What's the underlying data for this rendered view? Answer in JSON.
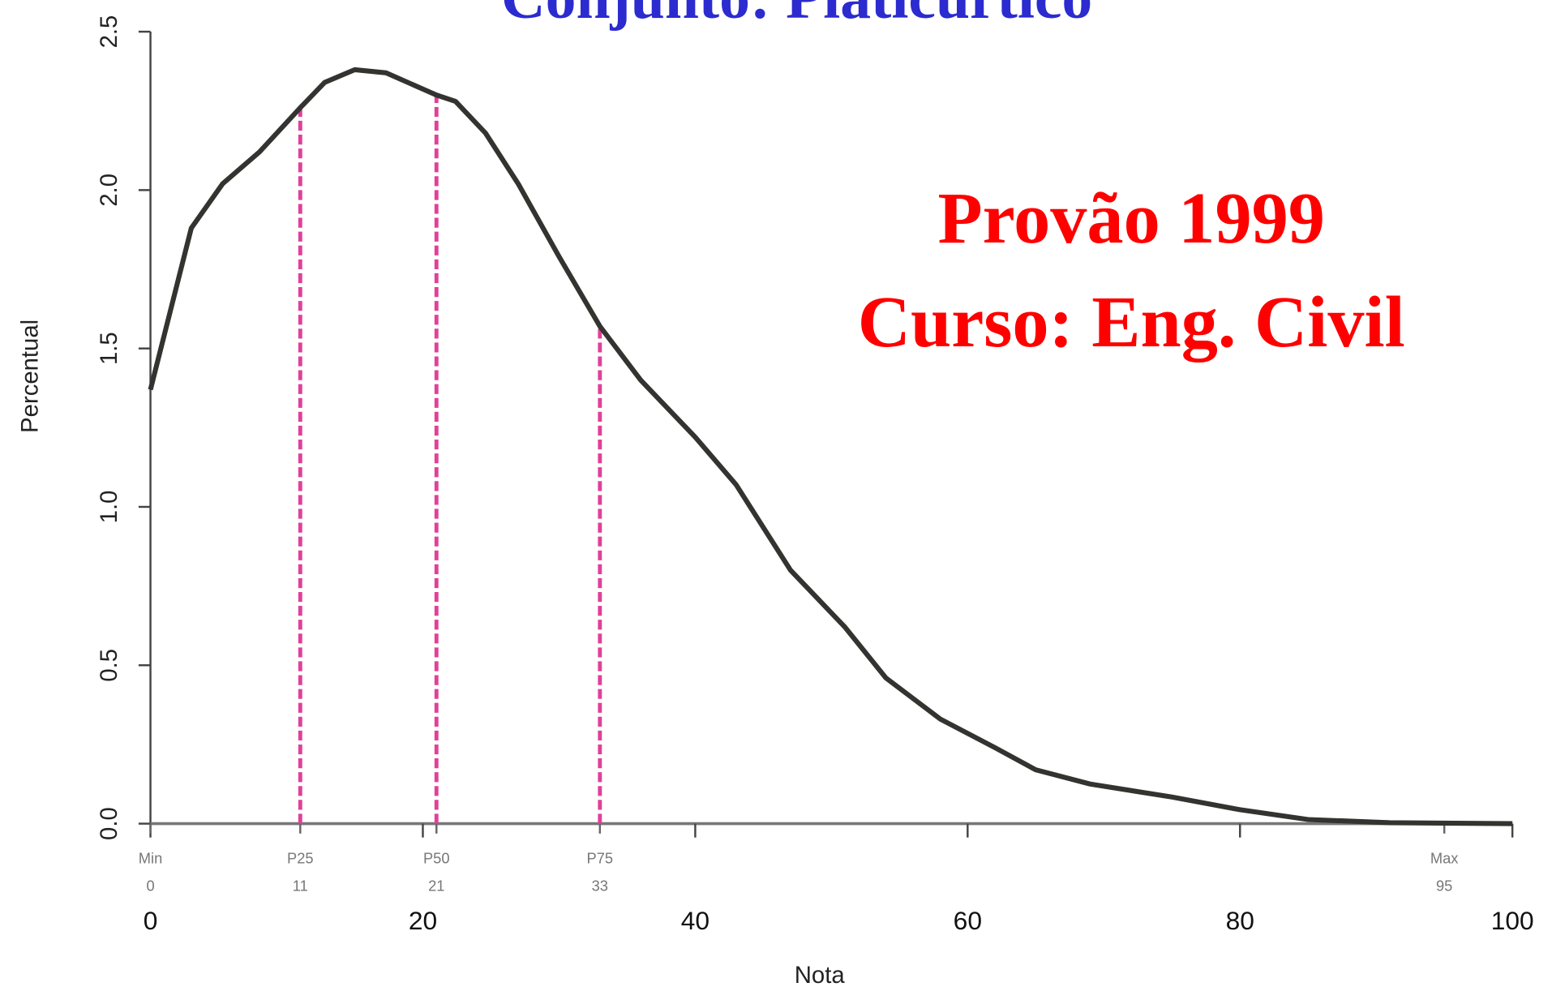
{
  "chart_data": {
    "type": "line",
    "title": "Conjunto: Platicúrtico",
    "annotations": [
      "Provão 1999",
      "Curso: Eng. Civil"
    ],
    "x_label": "Nota",
    "y_label": "Percentual",
    "x": [
      0,
      3,
      5.3,
      8,
      11,
      12.8,
      15,
      17.3,
      21,
      22.4,
      24.6,
      27,
      30,
      33,
      36,
      40,
      43,
      47,
      51,
      54,
      58,
      62,
      65,
      69,
      75,
      80,
      85,
      91,
      100
    ],
    "series": [
      {
        "color": "#333330",
        "values": [
          1.37,
          1.88,
          2.02,
          2.12,
          2.26,
          2.34,
          2.38,
          2.37,
          2.3,
          2.28,
          2.18,
          2.02,
          1.79,
          1.57,
          1.4,
          1.22,
          1.07,
          0.8,
          0.62,
          0.46,
          0.33,
          0.24,
          0.17,
          0.125,
          0.084,
          0.044,
          0.013,
          0.003,
          0
        ]
      }
    ],
    "xlim": [
      0,
      100
    ],
    "xticks": [
      0,
      20,
      40,
      60,
      80,
      100
    ],
    "ylim": [
      0,
      2.5
    ],
    "yticks": [
      {
        "value": 0,
        "label": "0.0"
      },
      0.5,
      {
        "value": 1,
        "label": "1.0"
      },
      1.5,
      {
        "value": 2,
        "label": "2.0"
      },
      2.5
    ],
    "markers": [
      {
        "name": "Min",
        "x": 0
      },
      {
        "name": "P25",
        "x": 11
      },
      {
        "name": "P50",
        "x": 21
      },
      {
        "name": "P75",
        "x": 33
      },
      {
        "name": "Max",
        "x": 95
      }
    ],
    "marker_color": "#e0409a"
  }
}
